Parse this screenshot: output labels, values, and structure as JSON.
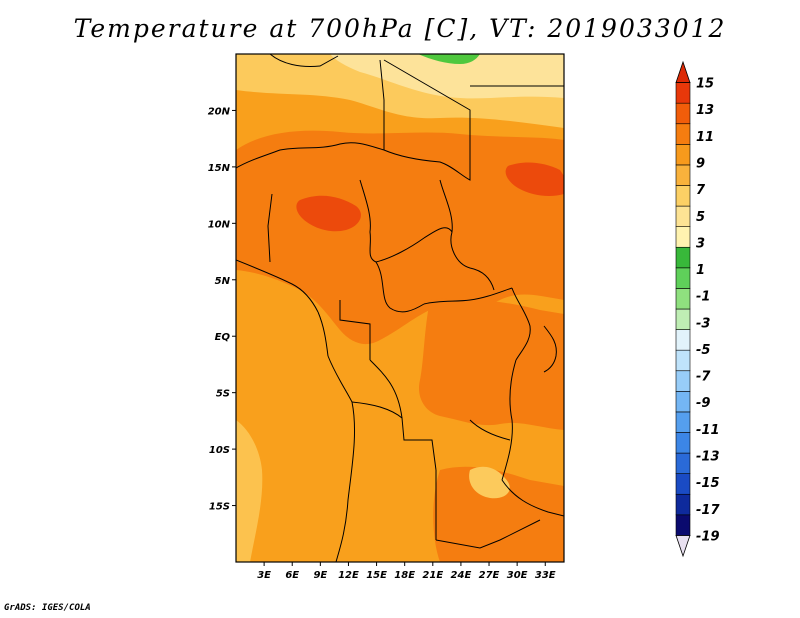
{
  "title": "Temperature at 700hPa [C], VT: 2019033012",
  "footer": "GrADS: IGES/COLA",
  "map": {
    "variable": "Temperature at 700hPa",
    "units": "C",
    "valid_time": "2019033012",
    "lat_ticks": [
      "20N",
      "15N",
      "10N",
      "5N",
      "EQ",
      "5S",
      "10S",
      "15S"
    ],
    "lat_tick_values": [
      20,
      15,
      10,
      5,
      0,
      -5,
      -10,
      -15
    ],
    "lon_ticks": [
      "3E",
      "6E",
      "9E",
      "12E",
      "15E",
      "18E",
      "21E",
      "24E",
      "27E",
      "30E",
      "33E"
    ],
    "lon_tick_values": [
      3,
      6,
      9,
      12,
      15,
      18,
      21,
      24,
      27,
      30,
      33
    ],
    "lon_range": [
      0,
      35
    ],
    "lat_range": [
      -20,
      25
    ]
  },
  "colorbar": {
    "labels": [
      "15",
      "13",
      "11",
      "9",
      "7",
      "5",
      "3",
      "1",
      "-1",
      "-3",
      "-5",
      "-7",
      "-9",
      "-11",
      "-13",
      "-15",
      "-17",
      "-19"
    ],
    "colors": [
      "#e8e0f0",
      "#0a0a6e",
      "#0e2a9c",
      "#1a4bc4",
      "#2a6ad8",
      "#3c86e6",
      "#559fee",
      "#74b6f4",
      "#98cdf8",
      "#bfe3fb",
      "#e2f3fb",
      "#bfeeb4",
      "#8fe07f",
      "#5fd05a",
      "#38b83a",
      "#fff3b0",
      "#fde394",
      "#fcd065",
      "#f9b23c",
      "#f79a1c",
      "#f57d10",
      "#f15d0a",
      "#e8380a",
      "#dc2a06"
    ]
  }
}
